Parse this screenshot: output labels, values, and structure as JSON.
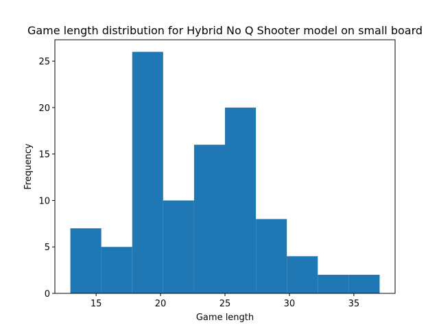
{
  "chart_data": {
    "type": "bar",
    "title": "Game length distribution for Hybrid No Q Shooter model on small board",
    "xlabel": "Game length",
    "ylabel": "Frequency",
    "bin_edges": [
      13.0,
      15.4,
      17.8,
      20.2,
      22.6,
      25.0,
      27.4,
      29.8,
      32.2,
      34.6,
      37.0
    ],
    "values": [
      7,
      5,
      26,
      10,
      16,
      20,
      8,
      4,
      2,
      2
    ],
    "xlim": [
      11.8,
      38.2
    ],
    "ylim": [
      0,
      27.3
    ],
    "xticks": [
      15,
      20,
      25,
      30,
      35
    ],
    "yticks": [
      0,
      5,
      10,
      15,
      20,
      25
    ],
    "bar_color": "#1f77b4",
    "grid": false
  }
}
